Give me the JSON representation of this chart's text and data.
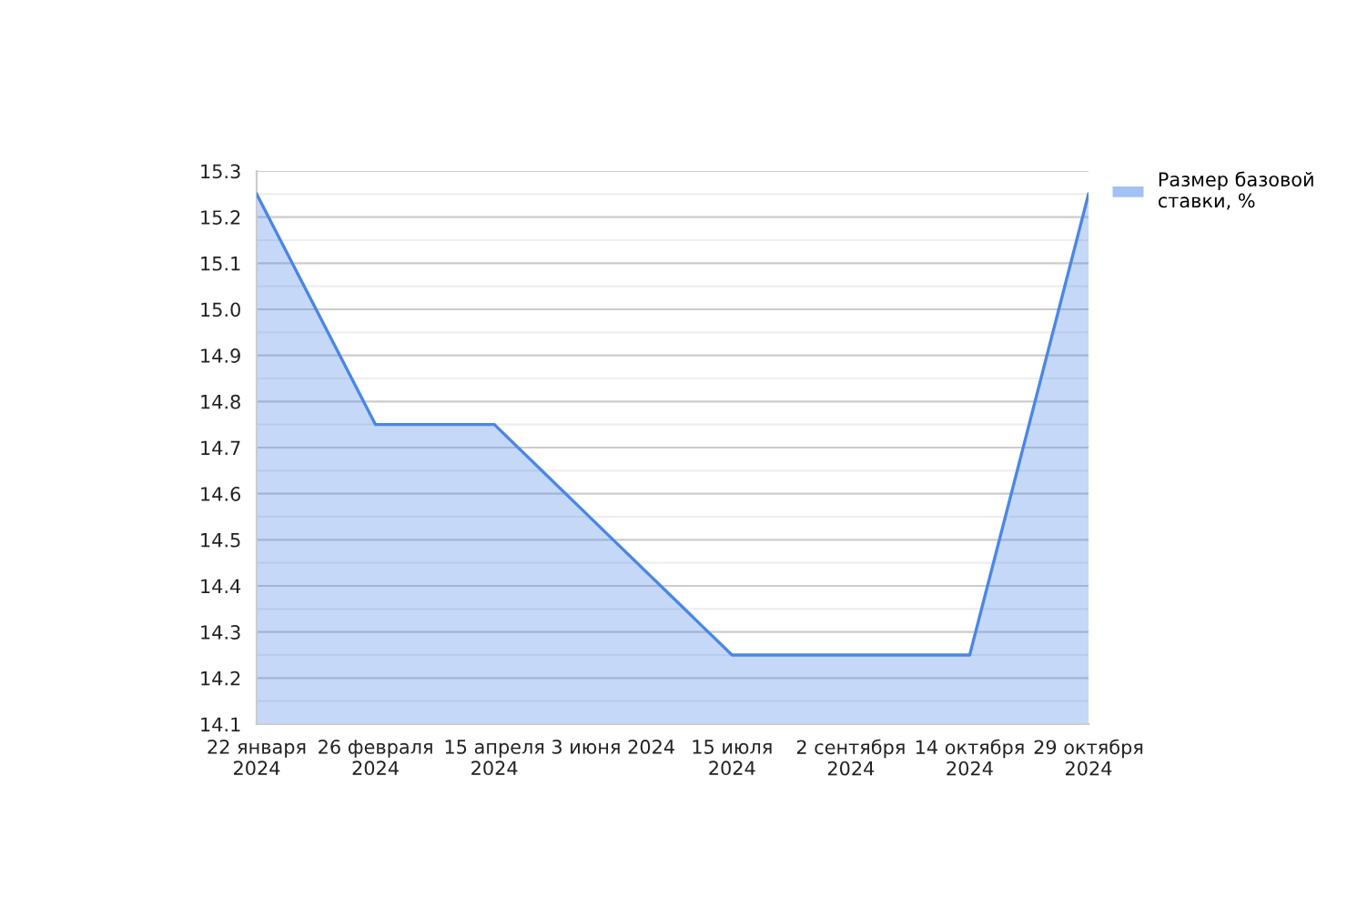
{
  "chart_data": {
    "type": "area",
    "categories": [
      "22 января 2024",
      "26 февраля 2024",
      "15 апреля 2024",
      "3 июня 2024",
      "15 июля 2024",
      "2 сентября 2024",
      "14 октября 2024",
      "29 октября 2024"
    ],
    "series": [
      {
        "name": "Размер базовой ставки, %",
        "color": "#4a86e8",
        "values": [
          15.25,
          14.75,
          14.75,
          14.5,
          14.25,
          14.25,
          14.25,
          15.25
        ]
      }
    ],
    "ylim": [
      14.1,
      15.3
    ],
    "yticks": [
      14.1,
      {
        "value": 14.15,
        "label": null
      },
      14.2,
      {
        "value": 14.25,
        "label": null
      },
      14.3,
      {
        "value": 14.35,
        "label": null
      },
      14.4,
      {
        "value": 14.45,
        "label": null
      },
      14.5,
      {
        "value": 14.55,
        "label": null
      },
      14.6,
      {
        "value": 14.65,
        "label": null
      },
      14.7,
      {
        "value": 14.75,
        "label": null
      },
      14.8,
      {
        "value": 14.85,
        "label": null
      },
      14.9,
      {
        "value": 14.95,
        "label": null
      },
      {
        "value": 15.0,
        "label": "15.0"
      },
      {
        "value": 15.05,
        "label": null
      },
      15.1,
      {
        "value": 15.15,
        "label": null
      },
      15.2,
      {
        "value": 15.25,
        "label": null
      },
      15.3
    ],
    "grid": "y",
    "legend": "top right",
    "marker": "none",
    "line_style": "solid"
  }
}
